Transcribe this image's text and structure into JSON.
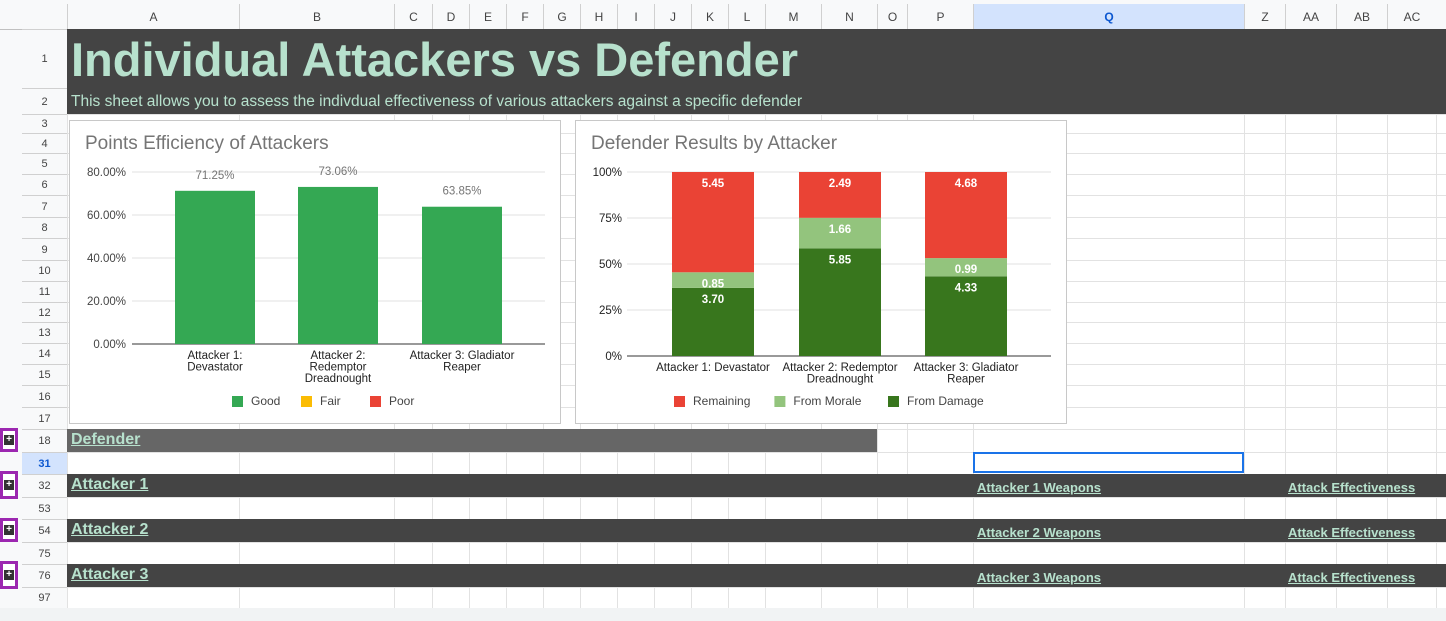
{
  "columns": [
    "A",
    "B",
    "C",
    "D",
    "E",
    "F",
    "G",
    "H",
    "I",
    "J",
    "K",
    "L",
    "M",
    "N",
    "O",
    "P",
    "Q",
    "Z",
    "AA",
    "AB",
    "AC"
  ],
  "selected_column": "Q",
  "rows": [
    "1",
    "2",
    "3",
    "4",
    "5",
    "6",
    "7",
    "8",
    "9",
    "10",
    "11",
    "12",
    "13",
    "14",
    "15",
    "16",
    "17",
    "18",
    "31",
    "32",
    "53",
    "54",
    "75",
    "76",
    "97"
  ],
  "selected_row": "31",
  "sheet": {
    "title": "Individual Attackers vs Defender",
    "subtitle": "This sheet allows you to assess the indivdual effectiveness of various attackers against a specific defender",
    "title_color": "#b7e1cd",
    "band_color": "#444444"
  },
  "sections": {
    "defender": {
      "label": "Defender"
    },
    "attacker1": {
      "label": "Attacker 1",
      "weapons": "Attacker 1 Weapons",
      "effectiveness": "Attack Effectiveness"
    },
    "attacker2": {
      "label": "Attacker 2",
      "weapons": "Attacker 2 Weapons",
      "effectiveness": "Attack Effectiveness"
    },
    "attacker3": {
      "label": "Attacker 3",
      "weapons": "Attacker 3 Weapons",
      "effectiveness": "Attack Effectiveness"
    }
  },
  "chart_data": [
    {
      "type": "bar",
      "title": "Points Efficiency of Attackers",
      "categories": [
        "Attacker 1:\nDevastator",
        "Attacker 2:\nRedemptor\nDreadnought",
        "Attacker 3: Gladiator\nReaper"
      ],
      "values": [
        71.25,
        73.06,
        63.85
      ],
      "data_labels": [
        "71.25%",
        "73.06%",
        "63.85%"
      ],
      "ylim": [
        0,
        80
      ],
      "yticks": [
        "0.00%",
        "20.00%",
        "40.00%",
        "60.00%",
        "80.00%"
      ],
      "legend": [
        {
          "name": "Good",
          "color": "#34a853"
        },
        {
          "name": "Fair",
          "color": "#fbbc04"
        },
        {
          "name": "Poor",
          "color": "#ea4335"
        }
      ],
      "legend_position": "bottom",
      "grid": true
    },
    {
      "type": "bar",
      "stacked": "percent",
      "title": "Defender Results by Attacker",
      "categories": [
        "Attacker 1: Devastator",
        "Attacker 2: Redemptor\nDreadnought",
        "Attacker 3: Gladiator\nReaper"
      ],
      "series": [
        {
          "name": "From Damage",
          "color": "#38761d",
          "values": [
            3.7,
            5.85,
            4.33
          ],
          "labels": [
            "3.70",
            "5.85",
            "4.33"
          ]
        },
        {
          "name": "From Morale",
          "color": "#93c47d",
          "values": [
            0.85,
            1.66,
            0.99
          ],
          "labels": [
            "0.85",
            "1.66",
            "0.99"
          ]
        },
        {
          "name": "Remaining",
          "color": "#ea4335",
          "values": [
            5.45,
            2.49,
            4.68
          ],
          "labels": [
            "5.45",
            "2.49",
            "4.68"
          ]
        }
      ],
      "legend_order": [
        "Remaining",
        "From Morale",
        "From Damage"
      ],
      "yticks": [
        "0%",
        "25%",
        "50%",
        "75%",
        "100%"
      ],
      "legend_position": "bottom",
      "grid": true
    }
  ]
}
